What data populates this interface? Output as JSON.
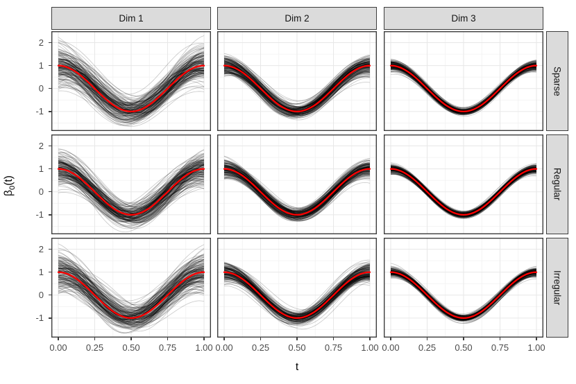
{
  "figure": {
    "facets": {
      "columns": [
        "Dim 1",
        "Dim 2",
        "Dim 3"
      ],
      "rows": [
        "Sparse",
        "Regular",
        "Irregular"
      ]
    },
    "y_axis": {
      "title_base": "β",
      "title_sub": "0",
      "title_rest": "(t)",
      "ticks": [
        "2",
        "1",
        "0",
        "-1"
      ],
      "tick_values": [
        2,
        1,
        0,
        -1
      ]
    },
    "x_axis": {
      "title": "t",
      "ticks": [
        "0.00",
        "0.25",
        "0.50",
        "0.75",
        "1.00"
      ],
      "tick_values": [
        0,
        0.25,
        0.5,
        0.75,
        1
      ]
    }
  },
  "chart_data": {
    "type": "line",
    "title": "",
    "xlabel": "t",
    "ylabel": "β0(t)",
    "facet_grid": {
      "columns": [
        "Dim 1",
        "Dim 2",
        "Dim 3"
      ],
      "rows": [
        "Sparse",
        "Regular",
        "Irregular"
      ]
    },
    "x_ticks": [
      0,
      0.25,
      0.5,
      0.75,
      1
    ],
    "y_ticks": [
      -1,
      0,
      1,
      2
    ],
    "x_minor_ticks": [
      0.125,
      0.375,
      0.625,
      0.875
    ],
    "y_minor_ticks": [
      -1.5,
      -0.5,
      0.5,
      1.5
    ],
    "xlim": [
      -0.048,
      1.048
    ],
    "ylim": [
      -1.85,
      2.5
    ],
    "grid": "major+minor",
    "legend": "none",
    "mean_curve": {
      "name": "true coefficient function",
      "formula": "cos(2*pi*t)",
      "color": "#FF0000",
      "t": [
        0,
        0.05,
        0.1,
        0.15,
        0.2,
        0.25,
        0.3,
        0.35,
        0.4,
        0.45,
        0.5,
        0.55,
        0.6,
        0.65,
        0.7,
        0.75,
        0.8,
        0.85,
        0.9,
        0.95,
        1
      ],
      "values": [
        1,
        0.951,
        0.809,
        0.588,
        0.309,
        0,
        -0.309,
        -0.588,
        -0.809,
        -0.951,
        -1,
        -0.951,
        -0.809,
        -0.588,
        -0.309,
        0,
        0.309,
        0.588,
        0.809,
        0.951,
        1
      ]
    },
    "ensemble": {
      "description": "simulation replicate estimates of beta0(t), drawn as thin semi-transparent black curves around the red true curve; spread widest for Dim 1, narrowest for Dim 3, widest near t=0 and t=1",
      "n_curves_per_panel": 170,
      "line_color": "#000000",
      "line_opacity": 0.22,
      "spread_sd_by_column": {
        "Dim 1": 0.48,
        "Dim 2": 0.24,
        "Dim 3": 0.12
      },
      "spread_multiplier_by_row": {
        "Sparse": 1.05,
        "Regular": 0.93,
        "Irregular": 1.03
      }
    }
  },
  "colors": {
    "strip_fill": "#DBDBDB",
    "strip_border": "#3C3C3C",
    "panel_border": "#3C3C3C",
    "grid_major": "#E7E7E7",
    "grid_minor": "#F2F2F2",
    "axis_text": "#4A4A4A",
    "mean_line": "#FF0000"
  }
}
